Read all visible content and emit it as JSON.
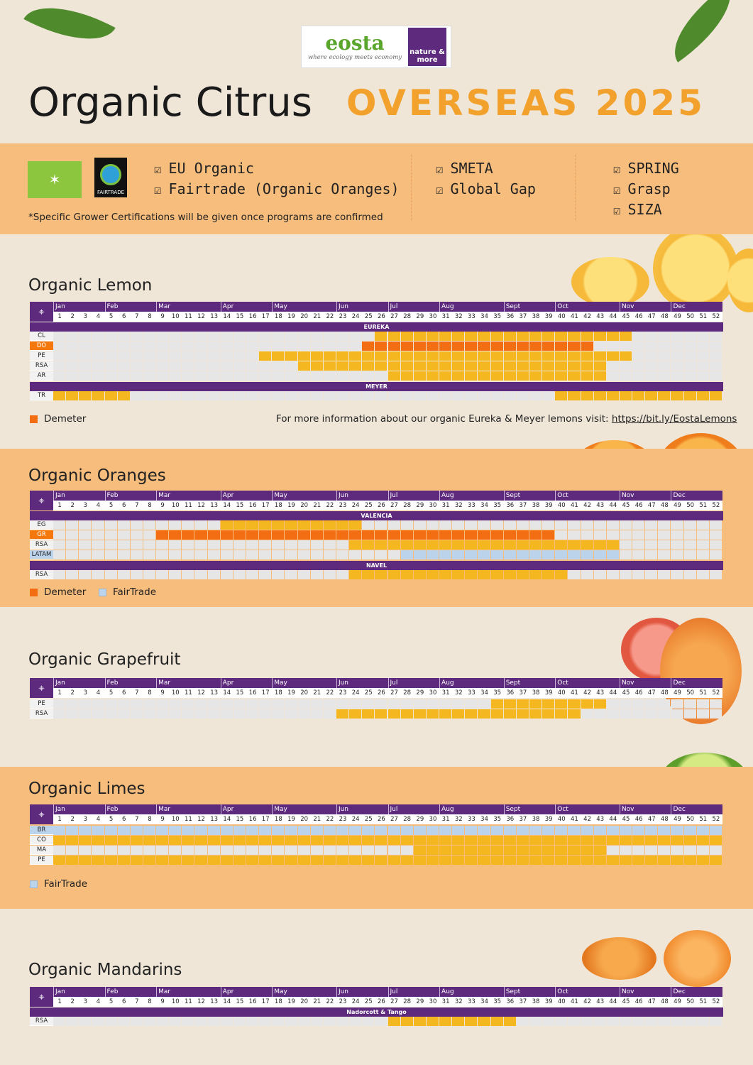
{
  "logo": {
    "brand": "eosta",
    "tagline": "where ecology meets economy",
    "partner": "nature & more"
  },
  "title": {
    "main": "Organic Citrus",
    "accent": "OVERSEAS 2025"
  },
  "certifications": {
    "eu_logo_label": "EU organic logo",
    "fairtrade_logo_label": "FAIRTRADE",
    "column1": [
      "EU Organic",
      "Fairtrade (Organic Oranges)"
    ],
    "column2": [
      "SMETA",
      "Global Gap"
    ],
    "column3": [
      "SPRING",
      "Grasp",
      "SIZA"
    ],
    "note": "*Specific Grower Certifications will be given once programs are confirmed"
  },
  "months": [
    {
      "name": "Jan",
      "start": 1
    },
    {
      "name": "Feb",
      "start": 5
    },
    {
      "name": "Mar",
      "start": 9
    },
    {
      "name": "Apr",
      "start": 14
    },
    {
      "name": "May",
      "start": 18
    },
    {
      "name": "Jun",
      "start": 23
    },
    {
      "name": "Jul",
      "start": 27
    },
    {
      "name": "Aug",
      "start": 31
    },
    {
      "name": "Sept",
      "start": 36
    },
    {
      "name": "Oct",
      "start": 40
    },
    {
      "name": "Nov",
      "start": 45
    },
    {
      "name": "Dec",
      "start": 49
    }
  ],
  "weeks": 52,
  "colors": {
    "regular": "#f5b720",
    "demeter": "#f36e13",
    "fairtrade": "#bcd3ec",
    "purple": "#5d2a7e",
    "band": "#f7bd7d"
  },
  "sections": {
    "lemon": {
      "title": "Organic Lemon",
      "groups": [
        {
          "variety": "EUREKA",
          "rows": [
            {
              "origin": "CL",
              "tag": "regular",
              "ranges": [
                [
                  26,
                  45
                ]
              ]
            },
            {
              "origin": "DO",
              "tag": "demeter",
              "ranges": [
                [
                  25,
                  42
                ]
              ]
            },
            {
              "origin": "PE",
              "tag": "regular",
              "ranges": [
                [
                  17,
                  45
                ]
              ]
            },
            {
              "origin": "RSA",
              "tag": "regular",
              "ranges": [
                [
                  20,
                  43
                ]
              ]
            },
            {
              "origin": "AR",
              "tag": "regular",
              "ranges": [
                [
                  27,
                  43
                ]
              ]
            }
          ]
        },
        {
          "variety": "MEYER",
          "rows": [
            {
              "origin": "TR",
              "tag": "regular",
              "ranges": [
                [
                  1,
                  6
                ],
                [
                  40,
                  52
                ]
              ]
            }
          ]
        }
      ],
      "legend": [
        "Demeter"
      ],
      "info_text": "For more information about our organic Eureka & Meyer lemons visit: ",
      "info_link": "https://bit.ly/EostaLemons"
    },
    "oranges": {
      "title": "Organic Oranges",
      "groups": [
        {
          "variety": "VALENCIA",
          "rows": [
            {
              "origin": "EG",
              "tag": "regular",
              "ranges": [
                [
                  14,
                  24
                ]
              ]
            },
            {
              "origin": "GR",
              "tag": "demeter",
              "ranges": [
                [
                  9,
                  39
                ]
              ]
            },
            {
              "origin": "RSA",
              "tag": "regular",
              "ranges": [
                [
                  24,
                  44
                ]
              ]
            },
            {
              "origin": "LATAM",
              "tag": "fairtrade",
              "ranges": [
                [
                  28,
                  44
                ]
              ]
            }
          ]
        },
        {
          "variety": "NAVEL",
          "rows": [
            {
              "origin": "RSA",
              "tag": "regular",
              "ranges": [
                [
                  24,
                  40
                ]
              ]
            }
          ]
        }
      ],
      "legend": [
        "Demeter",
        "FairTrade"
      ]
    },
    "grapefruit": {
      "title": "Organic Grapefruit",
      "groups": [
        {
          "variety": "",
          "rows": [
            {
              "origin": "PE",
              "tag": "regular",
              "ranges": [
                [
                  35,
                  43
                ]
              ]
            },
            {
              "origin": "RSA",
              "tag": "regular",
              "ranges": [
                [
                  23,
                  41
                ]
              ]
            }
          ]
        }
      ]
    },
    "limes": {
      "title": "Organic Limes",
      "groups": [
        {
          "variety": "",
          "rows": [
            {
              "origin": "BR",
              "tag": "fairtrade",
              "ranges": [
                [
                  1,
                  52
                ]
              ]
            },
            {
              "origin": "CO",
              "tag": "regular",
              "ranges": [
                [
                  1,
                  52
                ]
              ]
            },
            {
              "origin": "MA",
              "tag": "regular",
              "ranges": [
                [
                  29,
                  43
                ]
              ]
            },
            {
              "origin": "PE",
              "tag": "regular",
              "ranges": [
                [
                  1,
                  52
                ]
              ]
            }
          ]
        }
      ],
      "legend": [
        "FairTrade"
      ]
    },
    "mandarins": {
      "title": "Organic Mandarins",
      "groups": [
        {
          "variety": "Nadorcott & Tango",
          "rows": [
            {
              "origin": "RSA",
              "tag": "regular",
              "ranges": [
                [
                  27,
                  36
                ]
              ]
            }
          ]
        }
      ]
    }
  }
}
